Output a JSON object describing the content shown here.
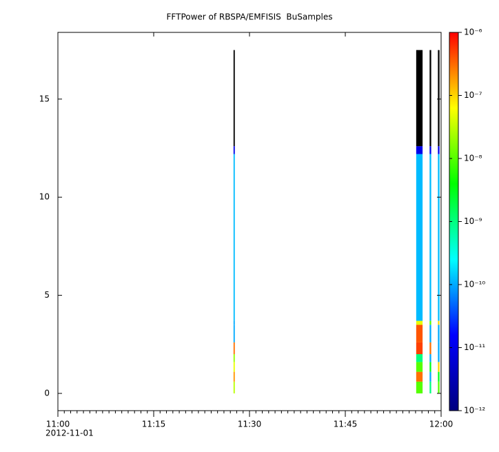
{
  "chart_data": {
    "type": "spectrogram",
    "title": "FFTPower of RBSPA/EMFISIS  BuSamples",
    "xlim": [
      0,
      60
    ],
    "xticks": [
      {
        "value": 0,
        "label": "11:00"
      },
      {
        "value": 15,
        "label": "11:15"
      },
      {
        "value": 30,
        "label": "11:30"
      },
      {
        "value": 45,
        "label": "11:45"
      },
      {
        "value": 60,
        "label": "12:00"
      }
    ],
    "xminor_step": 1,
    "x_date": "2012-11-01",
    "ylim": [
      -0.88,
      18.4
    ],
    "yticks": [
      0,
      5,
      10,
      15
    ],
    "zscale": "log",
    "zlim": [
      1e-12,
      1e-06
    ],
    "zticks": [
      {
        "value": 1e-06,
        "label": "10⁻⁶"
      },
      {
        "value": 1e-07,
        "label": "10⁻⁷"
      },
      {
        "value": 1e-08,
        "label": "10⁻⁸"
      },
      {
        "value": 1e-09,
        "label": "10⁻⁹"
      },
      {
        "value": 1e-10,
        "label": "10⁻¹⁰"
      },
      {
        "value": 1e-11,
        "label": "10⁻¹¹"
      },
      {
        "value": 1e-12,
        "label": "10⁻¹²"
      }
    ],
    "colormap": [
      "#00007f",
      "#0000ff",
      "#00ffff",
      "#00ff00",
      "#ffff00",
      "#ff0000"
    ],
    "under_color": "#000000",
    "ybins": [
      0,
      0.6,
      1.1,
      1.6,
      2.0,
      2.6,
      3.5,
      3.7,
      12.2,
      12.6,
      17.5
    ],
    "columns": [
      {
        "x0": 27.5,
        "x1": 27.7,
        "z": [
          3e-08,
          2e-07,
          5e-08,
          2e-08,
          3e-07,
          1e-10,
          1e-10,
          1.2e-10,
          1e-11,
          3e-13
        ]
      },
      {
        "x0": 56.1,
        "x1": 57.1,
        "z": [
          1e-08,
          3e-07,
          1e-08,
          1e-09,
          5e-07,
          4e-07,
          5e-08,
          1.2e-10,
          1e-11,
          3e-13
        ]
      },
      {
        "x0": 58.2,
        "x1": 58.45,
        "z": [
          1e-09,
          1e-10,
          3e-09,
          1e-10,
          3e-07,
          1e-10,
          1e-08,
          1.2e-10,
          1e-11,
          3e-13
        ]
      },
      {
        "x0": 59.5,
        "x1": 59.75,
        "z": [
          1e-08,
          3e-09,
          1e-07,
          1e-10,
          1e-10,
          1e-10,
          1e-07,
          1.2e-10,
          1e-11,
          3e-13
        ]
      }
    ]
  }
}
